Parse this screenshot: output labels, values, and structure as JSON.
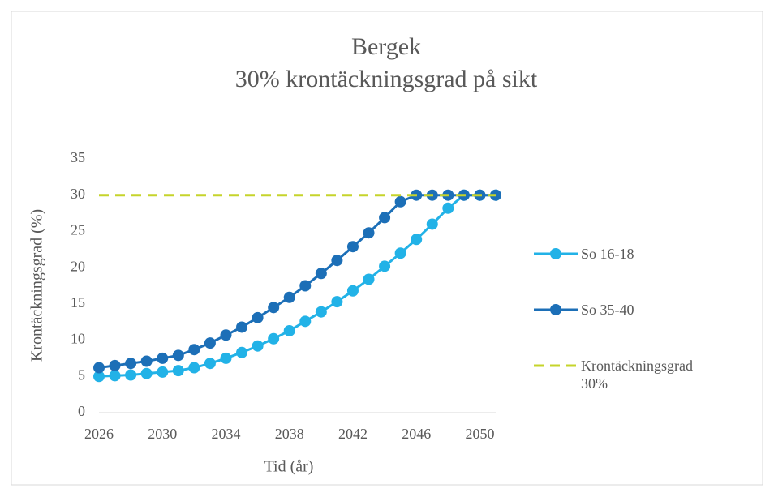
{
  "chart_data": {
    "type": "line",
    "title": "Bergek",
    "subtitle": "30% krontäckningsgrad på sikt",
    "xlabel": "Tid (år)",
    "ylabel": "Krontäckningsgrad (%)",
    "x": [
      2026,
      2027,
      2028,
      2029,
      2030,
      2031,
      2032,
      2033,
      2034,
      2035,
      2036,
      2037,
      2038,
      2039,
      2040,
      2041,
      2042,
      2043,
      2044,
      2045,
      2046,
      2047,
      2048,
      2049,
      2050,
      2051
    ],
    "series": [
      {
        "name": "So 16-18",
        "color": "#22b2e7",
        "dash": false,
        "values": [
          5.0,
          5.1,
          5.2,
          5.4,
          5.6,
          5.8,
          6.2,
          6.8,
          7.5,
          8.3,
          9.2,
          10.2,
          11.3,
          12.6,
          13.9,
          15.3,
          16.8,
          18.4,
          20.2,
          22.0,
          23.9,
          26.0,
          28.2,
          30,
          30,
          30
        ]
      },
      {
        "name": "So 35-40",
        "color": "#1c6fb7",
        "dash": false,
        "values": [
          6.2,
          6.5,
          6.8,
          7.1,
          7.5,
          7.9,
          8.7,
          9.6,
          10.7,
          11.8,
          13.1,
          14.5,
          15.9,
          17.5,
          19.2,
          21.0,
          22.9,
          24.8,
          26.9,
          29.1,
          30,
          30,
          30,
          30,
          30,
          30
        ]
      },
      {
        "name": "Krontäckningsgrad 30%",
        "color": "#c6d42b",
        "dash": true,
        "values": [
          30,
          30,
          30,
          30,
          30,
          30,
          30,
          30,
          30,
          30,
          30,
          30,
          30,
          30,
          30,
          30,
          30,
          30,
          30,
          30,
          30,
          30,
          30,
          30,
          30,
          30
        ]
      }
    ],
    "xlim": [
      2026,
      2051
    ],
    "xticks": [
      2026,
      2030,
      2034,
      2038,
      2042,
      2046,
      2050
    ],
    "ylim": [
      0,
      35
    ],
    "yticks": [
      0,
      5,
      10,
      15,
      20,
      25,
      30,
      35
    ],
    "grid": false,
    "legend": "right"
  }
}
